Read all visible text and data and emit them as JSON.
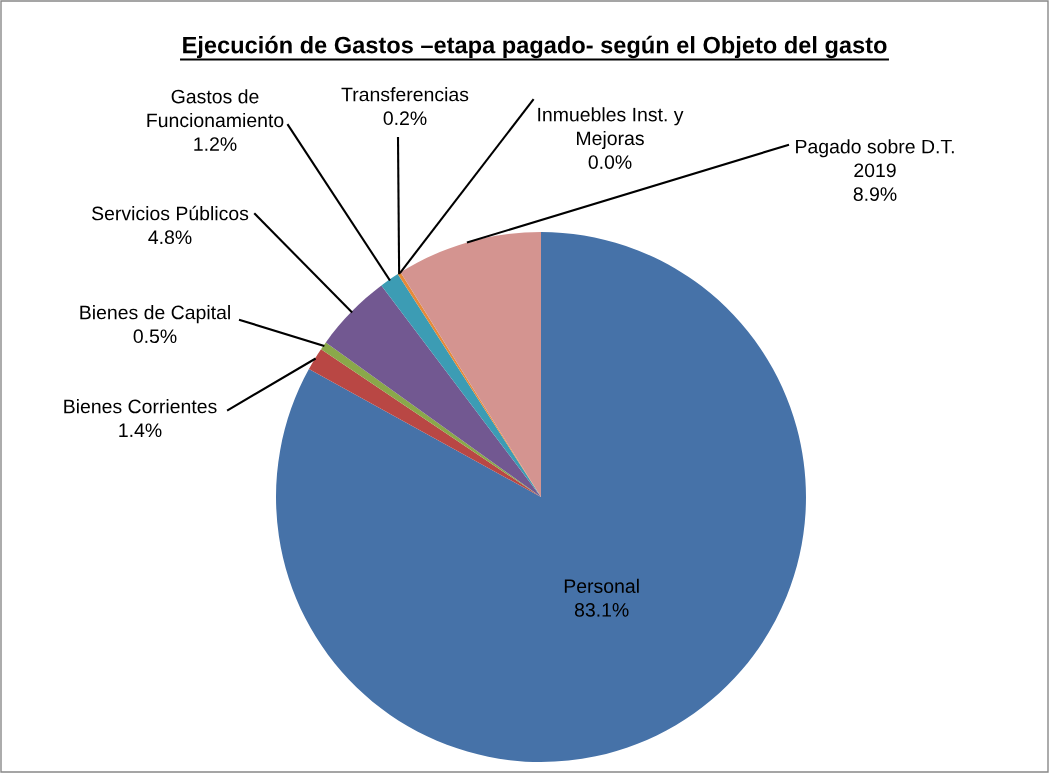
{
  "chart_data": {
    "type": "pie",
    "title": "Ejecución de Gastos –etapa pagado- según el Objeto del gasto",
    "categories": [
      "Personal",
      "Bienes Corrientes",
      "Bienes de Capital",
      "Servicios Públicos",
      "Gastos de\nFuncionamiento",
      "Transferencias",
      "Inmuebles Inst. y\nMejoras",
      "Pagado sobre D.T.\n2019"
    ],
    "values": [
      83.1,
      1.4,
      0.5,
      4.8,
      1.2,
      0.2,
      0.0,
      8.9
    ],
    "value_labels": [
      "83.1%",
      "1.4%",
      "0.5%",
      "4.8%",
      "1.2%",
      "0.2%",
      "0.0%",
      "8.9%"
    ],
    "colors": [
      "#4672a8",
      "#b94744",
      "#8aa84a",
      "#725891",
      "#3c9cb4",
      "#e58a3a",
      "#a9bcd8",
      "#d49490"
    ]
  }
}
